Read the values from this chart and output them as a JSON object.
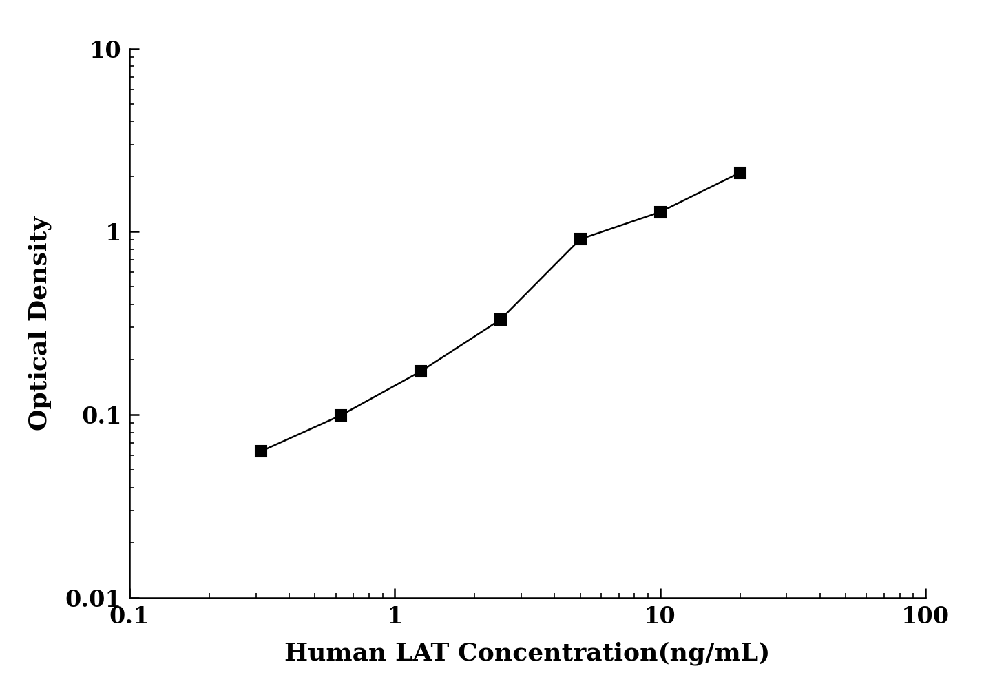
{
  "x_values": [
    0.3125,
    0.625,
    1.25,
    2.5,
    5.0,
    10.0,
    20.0
  ],
  "y_values": [
    0.063,
    0.099,
    0.172,
    0.33,
    0.91,
    1.28,
    2.1
  ],
  "xlim": [
    0.1,
    100
  ],
  "ylim": [
    0.01,
    10
  ],
  "xlabel": "Human LAT Concentration(ng/mL)",
  "ylabel": "Optical Density",
  "xlabel_fontsize": 26,
  "ylabel_fontsize": 26,
  "tick_fontsize": 24,
  "line_color": "#000000",
  "marker": "s",
  "marker_color": "#000000",
  "marker_size": 11,
  "linewidth": 1.8,
  "background_color": "#ffffff",
  "x_ticks": [
    0.1,
    1,
    10,
    100
  ],
  "x_tick_labels": [
    "0.1",
    "1",
    "10",
    "100"
  ],
  "y_ticks": [
    0.01,
    0.1,
    1,
    10
  ],
  "y_tick_labels": [
    "0.01",
    "0.1",
    "1",
    "10"
  ]
}
